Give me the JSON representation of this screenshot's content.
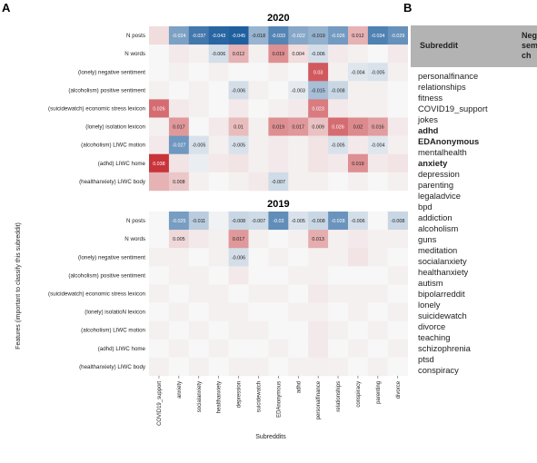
{
  "figure": {
    "panel_a_letter": "A",
    "panel_b_letter": "B",
    "y_axis_label": "Features (important to classify this subreddit)",
    "x_axis_label": "Subreddits"
  },
  "chart_data": [
    {
      "type": "heatmap",
      "title": "2020",
      "xlabel": "Subreddits",
      "ylabel": "Features (important to classify this subreddit)",
      "columns": [
        "COVID19_support",
        "anxiety",
        "socialanxiety",
        "healthanxiety",
        "depression",
        "suicidewatch",
        "EDAnonymous",
        "adhd",
        "personalfinance",
        "relationships",
        "conspiracy",
        "parenting",
        "divorce"
      ],
      "rows": [
        "N posts",
        "N words",
        "(lonely)  negative sentiment",
        "(alcoholism)  positive sentiment",
        "(suicidewatch)  economic stress lexicon",
        "(lonely)  isolation lexicon",
        "(alcoholism)  LIWC motion",
        "(adhd)  LIWC home",
        "(healthanxiety)  LIWC body"
      ],
      "labeled_values": [
        [
          null,
          -0.024,
          -0.037,
          -0.043,
          -0.045,
          -0.018,
          -0.033,
          -0.022,
          -0.019,
          -0.026,
          0.012,
          -0.034,
          -0.029
        ],
        [
          null,
          null,
          null,
          -0.006,
          0.012,
          null,
          0.019,
          0.004,
          -0.006,
          null,
          null,
          null,
          null
        ],
        [
          null,
          null,
          null,
          null,
          null,
          null,
          null,
          null,
          0.03,
          null,
          -0.004,
          -0.005,
          null
        ],
        [
          null,
          null,
          null,
          null,
          -0.006,
          null,
          null,
          -0.003,
          -0.015,
          -0.008,
          null,
          null,
          null
        ],
        [
          0.026,
          null,
          null,
          null,
          null,
          null,
          null,
          null,
          0.023,
          null,
          null,
          null,
          null
        ],
        [
          null,
          0.017,
          null,
          null,
          0.01,
          null,
          0.019,
          0.017,
          0.009,
          0.026,
          0.02,
          0.016,
          null
        ],
        [
          null,
          -0.027,
          -0.005,
          null,
          -0.005,
          null,
          null,
          null,
          null,
          -0.005,
          null,
          -0.004,
          null
        ],
        [
          0.038,
          null,
          null,
          null,
          null,
          null,
          null,
          null,
          null,
          null,
          0.019,
          null,
          null
        ],
        [
          null,
          0.008,
          null,
          null,
          null,
          null,
          -0.007,
          null,
          null,
          null,
          null,
          null,
          null
        ]
      ],
      "faint_values": [
        [
          0.004,
          0,
          0,
          0,
          0,
          0,
          0,
          0,
          0,
          0,
          0,
          0,
          0
        ],
        [
          0,
          0.002,
          0.001,
          0,
          0,
          0.001,
          0,
          0,
          0,
          0.002,
          0.001,
          0,
          0.002
        ],
        [
          0,
          0.001,
          0,
          0.001,
          0,
          0,
          0.001,
          0,
          0,
          0.001,
          0,
          0,
          0.001
        ],
        [
          0.001,
          0,
          0.001,
          0,
          0,
          0.001,
          0,
          0,
          0,
          0,
          0.001,
          0.001,
          0
        ],
        [
          0,
          0.002,
          0.001,
          0,
          0.002,
          0,
          0.001,
          0.002,
          0,
          0.002,
          0.001,
          0.001,
          0
        ],
        [
          0.001,
          0,
          0,
          0.002,
          0,
          0.001,
          0,
          0,
          0,
          0,
          0,
          0,
          0.002
        ],
        [
          0.002,
          0,
          0,
          0.001,
          0,
          0.001,
          0.002,
          0.001,
          0.003,
          0,
          0.002,
          0,
          0.001
        ],
        [
          0,
          0.003,
          -0.002,
          0.002,
          0.003,
          0.001,
          0.002,
          0.001,
          0.003,
          0.002,
          0,
          0.002,
          0.003
        ],
        [
          0.012,
          0,
          0.001,
          0,
          0.001,
          0.002,
          0,
          0.001,
          0.001,
          0,
          0.001,
          0,
          0.001
        ]
      ],
      "color_scale": {
        "min": -0.045,
        "max": 0.045,
        "negative": "#1f5f9e",
        "zero": "#f7f7f7",
        "positive": "#c0141b"
      }
    },
    {
      "type": "heatmap",
      "title": "2019",
      "columns": [
        "COVID19_support",
        "anxiety",
        "socialanxiety",
        "healthanxiety",
        "depression",
        "suicidewatch",
        "EDAnonymous",
        "adhd",
        "personalfinance",
        "relationships",
        "conspiracy",
        "parenting",
        "divorce"
      ],
      "rows": [
        "N posts",
        "N words",
        "(lonely)  negative sentiment",
        "(alcoholism)  positive sentiment",
        "(suicidewatch)  economic stress lexicon",
        "(lonely)  isolatioN lexicon",
        "(alcoholism)  LIWC motion",
        "(adhd)  LIWC home",
        "(healthanxiety)  LIWC body"
      ],
      "labeled_values": [
        [
          null,
          -0.025,
          -0.011,
          null,
          -0.008,
          -0.007,
          -0.03,
          -0.005,
          -0.008,
          -0.028,
          -0.006,
          null,
          -0.008
        ],
        [
          null,
          0.005,
          null,
          null,
          0.017,
          null,
          null,
          null,
          0.013,
          null,
          null,
          null,
          null
        ],
        [
          null,
          null,
          null,
          null,
          -0.006,
          null,
          null,
          null,
          null,
          null,
          null,
          null,
          null
        ],
        [
          null,
          null,
          null,
          null,
          null,
          null,
          null,
          null,
          null,
          null,
          null,
          null,
          null
        ],
        [
          null,
          null,
          null,
          null,
          null,
          null,
          null,
          null,
          null,
          null,
          null,
          null,
          null
        ],
        [
          null,
          null,
          null,
          null,
          null,
          null,
          null,
          null,
          null,
          null,
          null,
          null,
          null
        ],
        [
          null,
          null,
          null,
          null,
          null,
          null,
          null,
          null,
          null,
          null,
          null,
          null,
          null
        ],
        [
          null,
          null,
          null,
          null,
          null,
          null,
          null,
          null,
          null,
          null,
          null,
          null,
          null
        ],
        [
          null,
          null,
          null,
          null,
          null,
          null,
          null,
          null,
          null,
          null,
          null,
          null,
          null
        ]
      ],
      "faint_values": [
        [
          0,
          0,
          0,
          -0.001,
          0,
          0,
          0,
          0,
          0,
          0,
          0,
          0,
          0
        ],
        [
          0,
          0,
          0.002,
          0.001,
          0,
          0.001,
          0,
          0.001,
          0,
          0.001,
          0.002,
          0.001,
          0.001
        ],
        [
          0.001,
          0.001,
          0,
          0.001,
          0,
          0,
          0.001,
          0,
          0.001,
          0.001,
          0.003,
          0.001,
          0
        ],
        [
          0,
          0.001,
          0.001,
          0,
          0.002,
          0,
          0,
          0.001,
          0.001,
          0,
          0,
          0,
          0.001
        ],
        [
          0.001,
          0,
          0.001,
          0.001,
          0,
          0.001,
          0.001,
          0,
          0.002,
          0.001,
          0.001,
          0.001,
          0
        ],
        [
          0,
          0.001,
          0,
          0.001,
          0.001,
          0,
          0,
          0.001,
          0.001,
          0,
          0.001,
          0,
          0.001
        ],
        [
          0.001,
          0,
          0.001,
          0,
          0.001,
          0.001,
          0,
          0,
          0.002,
          0.001,
          0,
          0.001,
          0
        ],
        [
          0,
          0.001,
          0,
          0.001,
          0,
          0,
          0.001,
          0,
          0.002,
          0,
          0.001,
          0,
          0.001
        ],
        [
          0.001,
          0,
          0.001,
          0,
          0.001,
          0.001,
          0,
          0.001,
          0.001,
          0.001,
          0,
          0.001,
          0
        ]
      ],
      "color_scale": {
        "min": -0.045,
        "max": 0.045,
        "negative": "#1f5f9e",
        "zero": "#f7f7f7",
        "positive": "#c0141b"
      }
    }
  ],
  "panel_b": {
    "header_subreddit": "Subreddit",
    "header_second": [
      "Neg",
      "sem",
      "ch"
    ],
    "items": [
      {
        "label": "personalfinance",
        "bold": false
      },
      {
        "label": "relationships",
        "bold": false
      },
      {
        "label": "fitness",
        "bold": false
      },
      {
        "label": "COVID19_support",
        "bold": false
      },
      {
        "label": "jokes",
        "bold": false
      },
      {
        "label": "adhd",
        "bold": true
      },
      {
        "label": "EDAnonymous",
        "bold": true
      },
      {
        "label": "mentalhealth",
        "bold": false
      },
      {
        "label": "anxiety",
        "bold": true
      },
      {
        "label": "depression",
        "bold": false
      },
      {
        "label": "parenting",
        "bold": false
      },
      {
        "label": "legaladvice",
        "bold": false
      },
      {
        "label": "bpd",
        "bold": false
      },
      {
        "label": "addiction",
        "bold": false
      },
      {
        "label": "alcoholism",
        "bold": false
      },
      {
        "label": "guns",
        "bold": false
      },
      {
        "label": "meditation",
        "bold": false
      },
      {
        "label": "socialanxiety",
        "bold": false
      },
      {
        "label": "healthanxiety",
        "bold": false
      },
      {
        "label": "autism",
        "bold": false
      },
      {
        "label": "bipolarreddit",
        "bold": false
      },
      {
        "label": "lonely",
        "bold": false
      },
      {
        "label": "suicidewatch",
        "bold": false
      },
      {
        "label": "divorce",
        "bold": false
      },
      {
        "label": "teaching",
        "bold": false
      },
      {
        "label": "schizophrenia",
        "bold": false
      },
      {
        "label": "ptsd",
        "bold": false
      },
      {
        "label": "conspiracy",
        "bold": false
      }
    ]
  }
}
